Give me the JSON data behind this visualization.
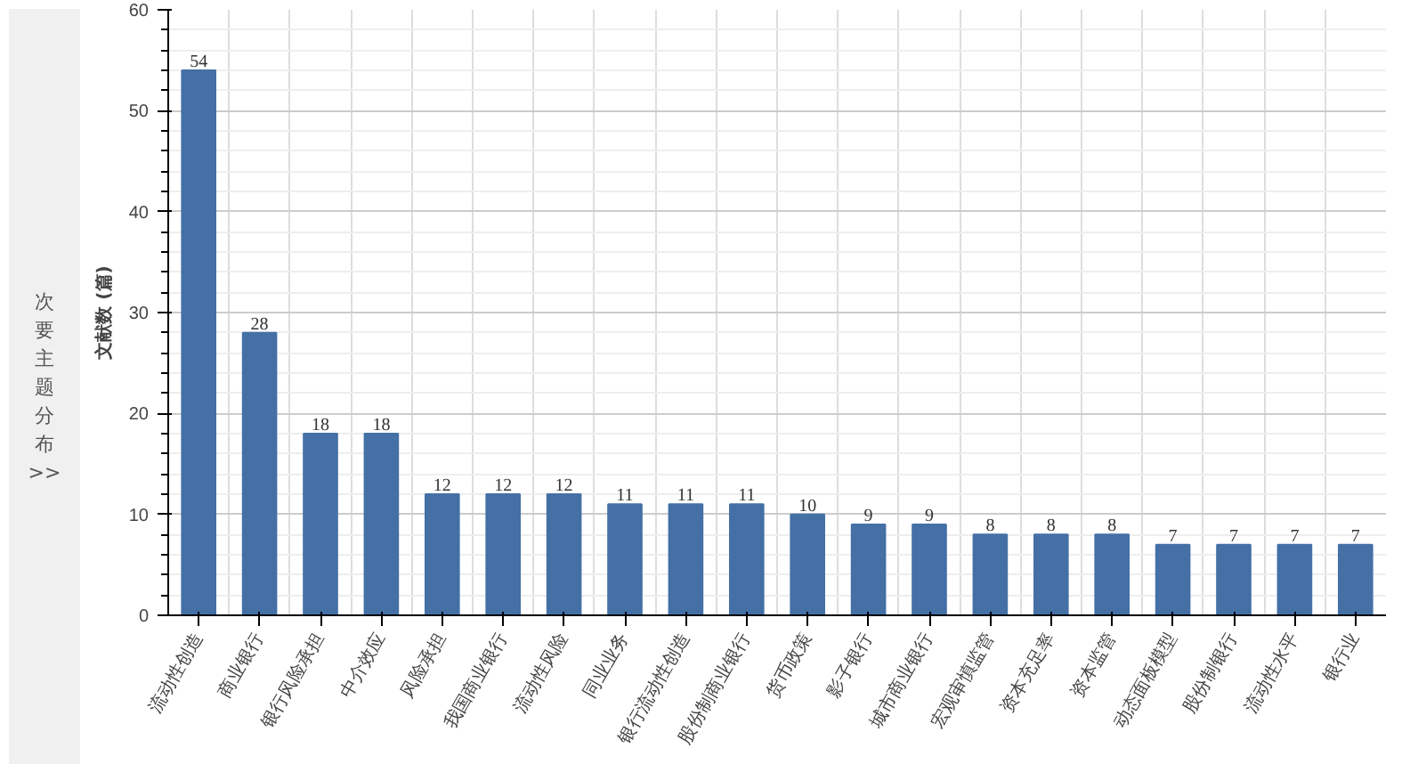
{
  "chart_data": {
    "type": "bar",
    "ylabel": "文献数 (篇)",
    "annotations": [
      "次要主题分布 >>"
    ],
    "categories": [
      "流动性创造",
      "商业银行",
      "银行风险承担",
      "中介效应",
      "风险承担",
      "我国商业银行",
      "流动性风险",
      "同业业务",
      "银行流动性创造",
      "股份制商业银行",
      "货币政策",
      "影子银行",
      "城市商业银行",
      "宏观审慎监管",
      "资本充足率",
      "资本监管",
      "动态面板模型",
      "股份制银行",
      "流动性水平",
      "银行业"
    ],
    "values": [
      54,
      28,
      18,
      18,
      12,
      12,
      12,
      11,
      11,
      11,
      10,
      9,
      9,
      8,
      8,
      8,
      7,
      7,
      7,
      7
    ],
    "color": "#4470a6",
    "ylim": [
      0,
      60
    ],
    "yticks": [
      0,
      10,
      20,
      30,
      40,
      50,
      60
    ],
    "grid": true,
    "data_labels": true
  }
}
